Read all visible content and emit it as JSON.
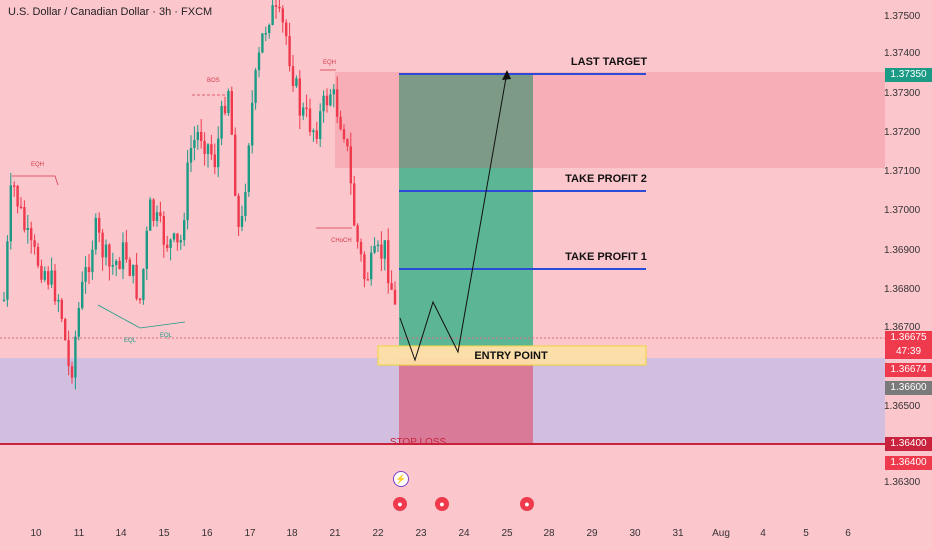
{
  "header": {
    "title": "U.S. Dollar / Canadian Dollar · 3h · FXCM"
  },
  "price_axis": {
    "labels": [
      "1.37500",
      "1.37400",
      "1.37300",
      "1.37200",
      "1.37100",
      "1.37000",
      "1.36900",
      "1.36800",
      "1.36700",
      "1.36500",
      "1.36300"
    ],
    "current_price": "1.36675",
    "countdown": "47:39",
    "tag_entry": "1.36674",
    "tag_zone": "1.36600",
    "tag_target": "1.37350",
    "tag_stop_1": "1.36400",
    "tag_stop_2": "1.36400"
  },
  "time_axis": {
    "labels": [
      "10",
      "11",
      "14",
      "15",
      "16",
      "17",
      "18",
      "21",
      "22",
      "23",
      "24",
      "25",
      "28",
      "29",
      "30",
      "31",
      "Aug",
      "4",
      "5",
      "6"
    ]
  },
  "annotations": {
    "last_target": "LAST TARGET",
    "take_profit_2": "TAKE PROFIT 2",
    "take_profit_1": "TAKE PROFIT 1",
    "entry_point": "ENTRY POINT",
    "stop_loss": "STOP LOSS",
    "eqh_left": "EQH",
    "eqh_top": "EQH",
    "bos": "BOS",
    "choch": "CHoCH",
    "eql_1": "EQL",
    "eql_2": "EQL"
  },
  "colors": {
    "background": "#fcc6cd",
    "bull": "#1b9b85",
    "bear": "#ee3a4c",
    "target_blue": "#2a4bd8",
    "stop_red": "#c8223c",
    "tag_green": "#1b9b85",
    "tag_red": "#ee3a4c",
    "tag_gray": "#7a7a7a"
  },
  "chart_data": {
    "type": "candlestick",
    "title": "U.S. Dollar / Canadian Dollar · 3h · FXCM",
    "ylim": [
      1.3625,
      1.3755
    ],
    "levels": {
      "last_target": 1.3735,
      "take_profit_2": 1.3705,
      "take_profit_1": 1.3685,
      "entry": 1.36674,
      "stop_loss": 1.364
    },
    "x_categories": [
      "10",
      "11",
      "14",
      "15",
      "16",
      "17",
      "18",
      "21",
      "22",
      "23",
      "24",
      "25",
      "28",
      "29",
      "30",
      "31",
      "Aug",
      "4",
      "5",
      "6"
    ]
  }
}
